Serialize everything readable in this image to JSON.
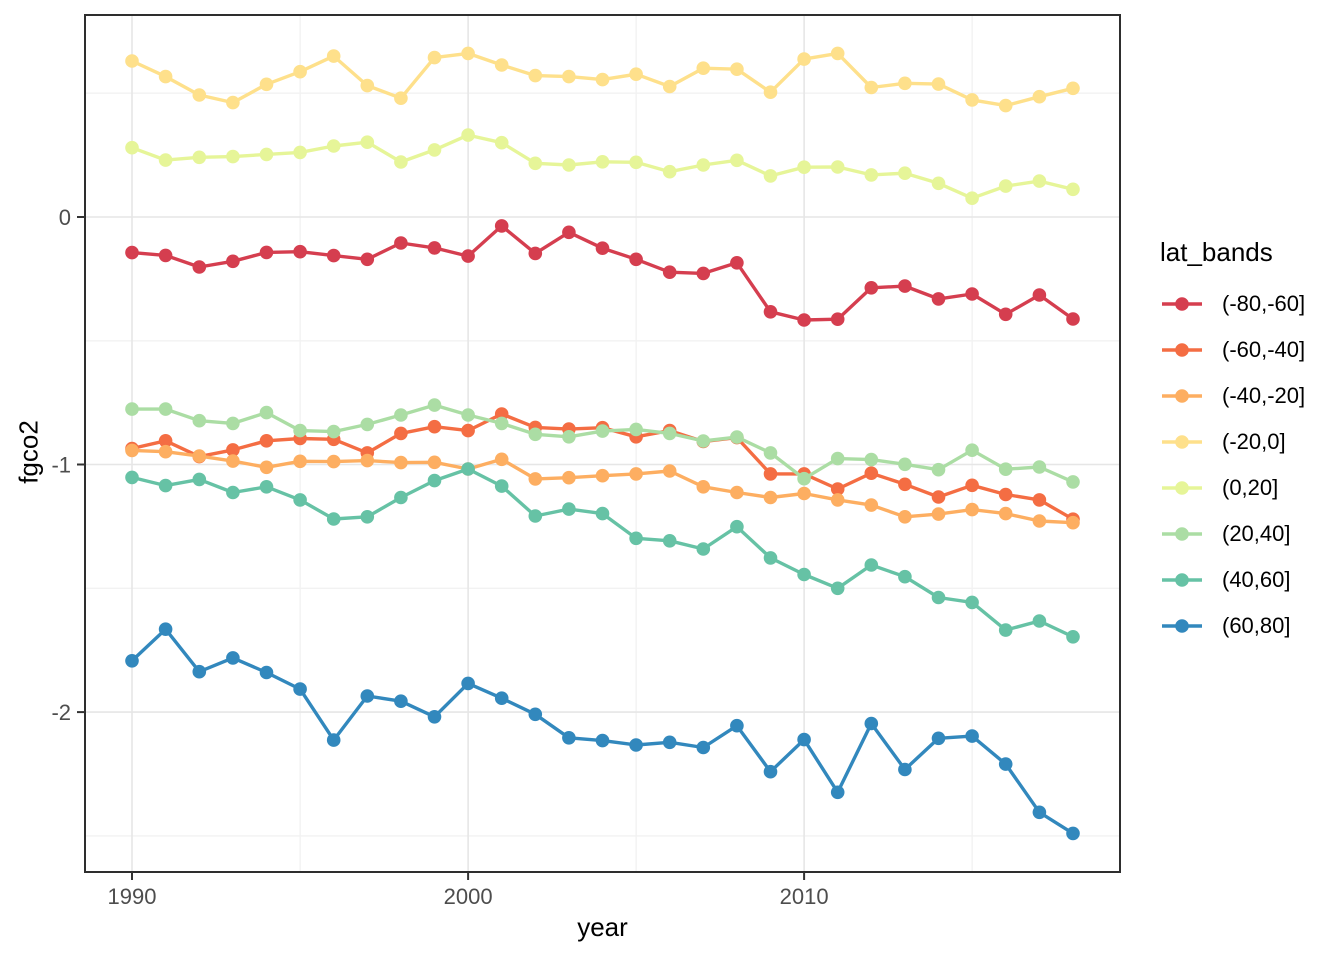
{
  "chart_data": {
    "type": "line",
    "title": "",
    "xlabel": "year",
    "ylabel": "fgco2",
    "legend_title": "lat_bands",
    "legend_position": "right",
    "grid": "major+minor",
    "xlim": [
      1988.6,
      2019.4
    ],
    "ylim": [
      -2.646,
      0.816
    ],
    "x_ticks": {
      "major": [
        1990,
        2000,
        2010
      ],
      "minor": [
        1995,
        2005,
        2015
      ],
      "labels": [
        "1990",
        "2000",
        "2010"
      ]
    },
    "y_ticks": {
      "major": [
        0,
        -1,
        -2
      ],
      "minor": [
        0.5,
        -0.5,
        -1.5,
        -2.5
      ],
      "labels": [
        "0",
        "-1",
        "-2"
      ]
    },
    "x": [
      1990,
      1991,
      1992,
      1993,
      1994,
      1995,
      1996,
      1997,
      1998,
      1999,
      2000,
      2001,
      2002,
      2003,
      2004,
      2005,
      2006,
      2007,
      2008,
      2009,
      2010,
      2011,
      2012,
      2013,
      2014,
      2015,
      2016,
      2017,
      2018
    ],
    "series": [
      {
        "name": "(-80,-60]",
        "color": "#d53e4f",
        "values": [
          -0.144,
          -0.155,
          -0.202,
          -0.179,
          -0.143,
          -0.14,
          -0.156,
          -0.171,
          -0.105,
          -0.125,
          -0.158,
          -0.036,
          -0.147,
          -0.062,
          -0.126,
          -0.171,
          -0.223,
          -0.228,
          -0.185,
          -0.383,
          -0.416,
          -0.413,
          -0.286,
          -0.279,
          -0.331,
          -0.311,
          -0.393,
          -0.315,
          -0.412
        ]
      },
      {
        "name": "(-60,-40]",
        "color": "#f46d43",
        "values": [
          -0.935,
          -0.904,
          -0.968,
          -0.941,
          -0.904,
          -0.895,
          -0.898,
          -0.953,
          -0.874,
          -0.847,
          -0.863,
          -0.796,
          -0.85,
          -0.857,
          -0.851,
          -0.888,
          -0.863,
          -0.907,
          -0.891,
          -1.038,
          -1.038,
          -1.099,
          -1.035,
          -1.08,
          -1.131,
          -1.084,
          -1.121,
          -1.143,
          -1.221
        ]
      },
      {
        "name": "(-40,-20]",
        "color": "#fdae61",
        "values": [
          -0.943,
          -0.948,
          -0.966,
          -0.986,
          -1.011,
          -0.987,
          -0.988,
          -0.984,
          -0.992,
          -0.991,
          -1.018,
          -0.979,
          -1.058,
          -1.053,
          -1.045,
          -1.038,
          -1.026,
          -1.09,
          -1.113,
          -1.133,
          -1.117,
          -1.143,
          -1.164,
          -1.211,
          -1.2,
          -1.182,
          -1.198,
          -1.228,
          -1.235
        ]
      },
      {
        "name": "(-20,0]",
        "color": "#fee08b",
        "values": [
          0.63,
          0.567,
          0.493,
          0.462,
          0.536,
          0.587,
          0.65,
          0.531,
          0.48,
          0.644,
          0.661,
          0.614,
          0.571,
          0.567,
          0.555,
          0.577,
          0.527,
          0.601,
          0.597,
          0.504,
          0.638,
          0.661,
          0.523,
          0.54,
          0.537,
          0.473,
          0.45,
          0.486,
          0.52
        ]
      },
      {
        "name": "(0,20]",
        "color": "#e6f598",
        "values": [
          0.28,
          0.23,
          0.241,
          0.244,
          0.253,
          0.261,
          0.287,
          0.302,
          0.222,
          0.271,
          0.331,
          0.3,
          0.217,
          0.21,
          0.223,
          0.221,
          0.183,
          0.21,
          0.229,
          0.166,
          0.201,
          0.202,
          0.17,
          0.177,
          0.136,
          0.076,
          0.125,
          0.145,
          0.112
        ]
      },
      {
        "name": "(20,40]",
        "color": "#abdda4",
        "values": [
          -0.776,
          -0.776,
          -0.823,
          -0.834,
          -0.79,
          -0.863,
          -0.867,
          -0.838,
          -0.8,
          -0.76,
          -0.8,
          -0.834,
          -0.878,
          -0.888,
          -0.865,
          -0.858,
          -0.874,
          -0.905,
          -0.889,
          -0.953,
          -1.057,
          -0.976,
          -0.98,
          -0.999,
          -1.021,
          -0.942,
          -1.019,
          -1.01,
          -1.07
        ]
      },
      {
        "name": "(40,60]",
        "color": "#66c2a5",
        "values": [
          -1.052,
          -1.085,
          -1.06,
          -1.113,
          -1.09,
          -1.143,
          -1.22,
          -1.211,
          -1.133,
          -1.065,
          -1.018,
          -1.087,
          -1.208,
          -1.18,
          -1.198,
          -1.298,
          -1.308,
          -1.341,
          -1.251,
          -1.377,
          -1.444,
          -1.5,
          -1.406,
          -1.453,
          -1.537,
          -1.557,
          -1.669,
          -1.632,
          -1.696
        ]
      },
      {
        "name": "(60,80]",
        "color": "#3288bd",
        "values": [
          -1.793,
          -1.665,
          -1.837,
          -1.781,
          -1.84,
          -1.907,
          -2.113,
          -1.935,
          -1.956,
          -2.019,
          -1.884,
          -1.944,
          -2.009,
          -2.104,
          -2.115,
          -2.133,
          -2.122,
          -2.143,
          -2.055,
          -2.241,
          -2.111,
          -2.324,
          -2.046,
          -2.232,
          -2.106,
          -2.097,
          -2.21,
          -2.405,
          -2.49
        ]
      }
    ]
  },
  "style_colors": {
    "axis_text": "#4d4d4d",
    "title_text": "#000000",
    "panel_border": "#2e2e2e",
    "grid_major": "#e6e6e6",
    "grid_minor": "#f2f2f2",
    "background": "#ffffff"
  }
}
